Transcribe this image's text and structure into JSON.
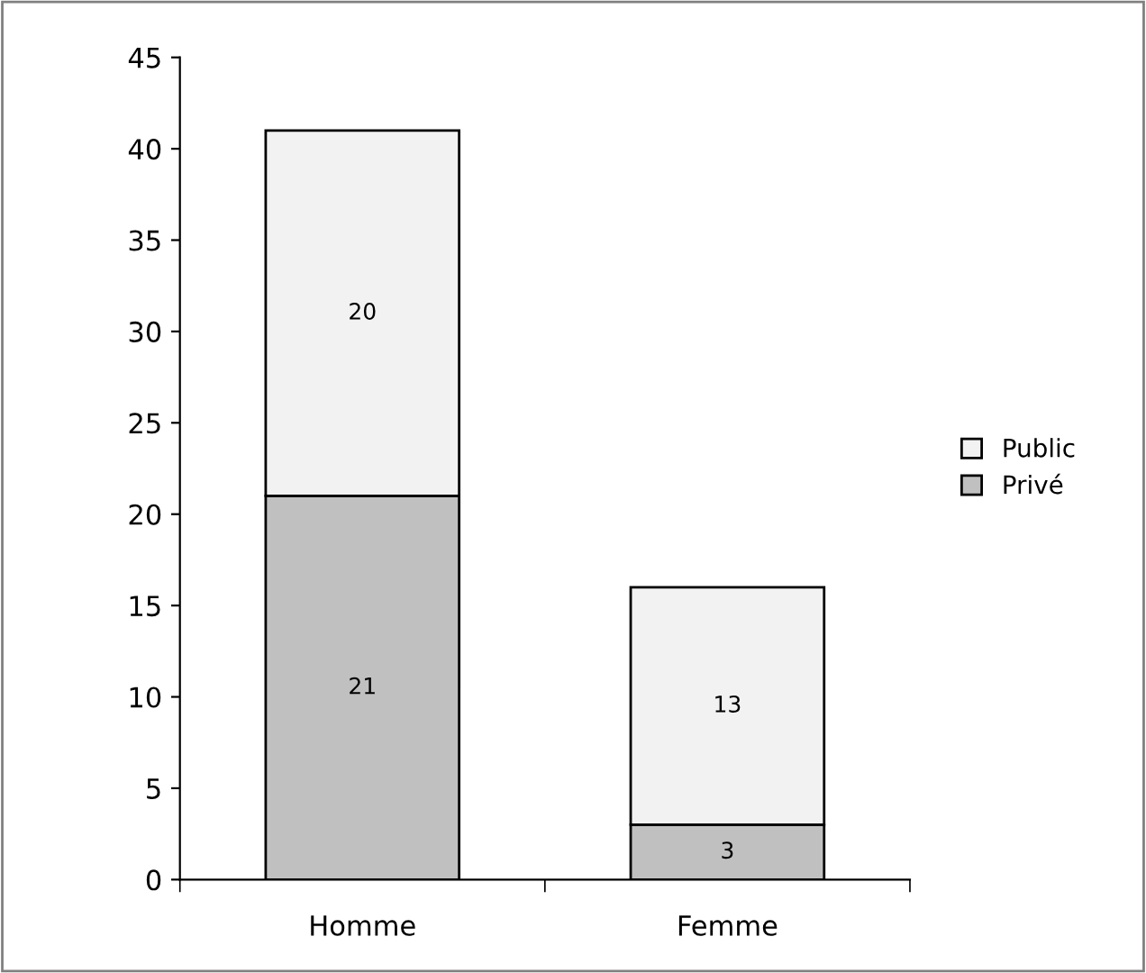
{
  "chart_data": {
    "type": "bar",
    "stacked": true,
    "categories": [
      "Homme",
      "Femme"
    ],
    "series": [
      {
        "name": "Privé",
        "color": "#c0c0c0",
        "values": [
          21,
          3
        ]
      },
      {
        "name": "Public",
        "color": "#f2f2f2",
        "values": [
          20,
          13
        ]
      }
    ],
    "ylim": [
      0,
      45
    ],
    "yticks": [
      0,
      5,
      10,
      15,
      20,
      25,
      30,
      35,
      40,
      45
    ],
    "grid": false,
    "legend": "right",
    "data_labels": true
  }
}
